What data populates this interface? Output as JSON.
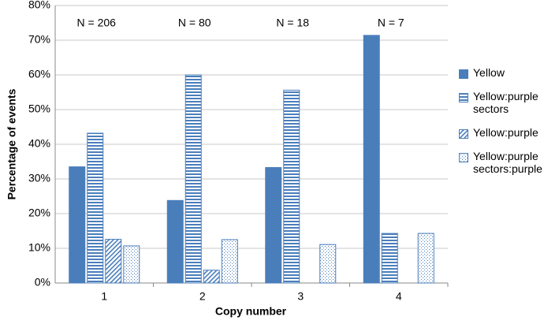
{
  "chart_data": {
    "type": "bar",
    "ylabel": "Percentage of events",
    "xlabel": "Copy number",
    "categories": [
      "1",
      "2",
      "3",
      "4"
    ],
    "annotations": [
      "N = 206",
      "N = 80",
      "N = 18",
      "N = 7"
    ],
    "series": [
      {
        "name": "Yellow",
        "color": "#4a7ebb",
        "pattern": "solid",
        "values": [
          33.5,
          23.8,
          33.3,
          71.4
        ]
      },
      {
        "name": "Yellow:purple sectors",
        "color": "#4a7ebb",
        "pattern": "horizontal",
        "values": [
          43.2,
          60.0,
          55.6,
          14.3
        ]
      },
      {
        "name": "Yellow:purple",
        "color": "#4a7ebb",
        "pattern": "diagonal",
        "values": [
          12.6,
          3.7,
          null,
          null
        ]
      },
      {
        "name": "Yellow:purple sectors:purple",
        "color": "#4a7ebb",
        "pattern": "dots",
        "values": [
          10.7,
          12.5,
          11.1,
          14.3
        ]
      }
    ],
    "ylim": [
      0,
      80
    ],
    "yticks": [
      {
        "value": 0,
        "label": "0%"
      },
      {
        "value": 10,
        "label": "10%"
      },
      {
        "value": 20,
        "label": "20%"
      },
      {
        "value": 30,
        "label": "30%"
      },
      {
        "value": 40,
        "label": "40%"
      },
      {
        "value": 50,
        "label": "50%"
      },
      {
        "value": 60,
        "label": "60%"
      },
      {
        "value": 70,
        "label": "70%"
      },
      {
        "value": 80,
        "label": "80%"
      }
    ],
    "grid": true,
    "legend": "right"
  }
}
